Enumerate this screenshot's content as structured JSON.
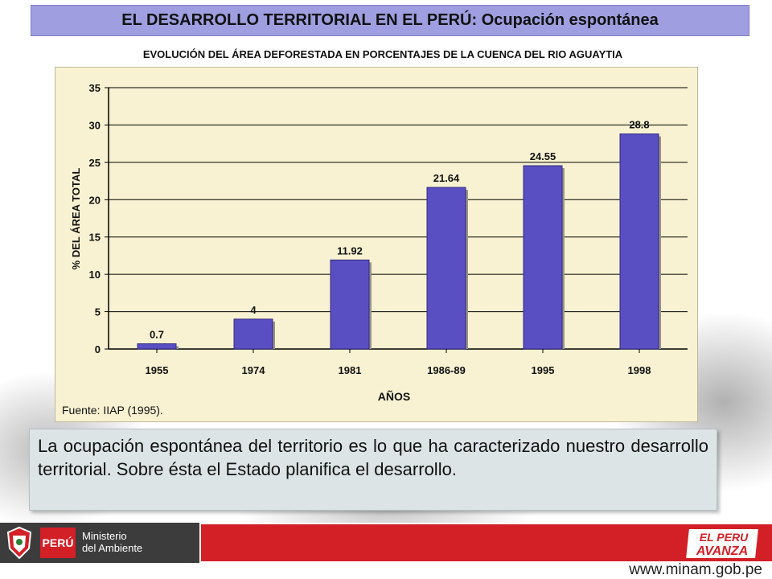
{
  "header": {
    "title": "EL DESARROLLO TERRITORIAL EN EL PERÚ: Ocupación espontánea",
    "subtitle": "EVOLUCIÓN DEL ÁREA DEFORESTADA EN PORCENTAJES DE LA CUENCA DEL RIO AGUAYTIA"
  },
  "chart_data": {
    "type": "bar",
    "categories": [
      "1955",
      "1974",
      "1981",
      "1986-89",
      "1995",
      "1998"
    ],
    "values": [
      0.7,
      4,
      11.92,
      21.64,
      24.55,
      28.8
    ],
    "data_labels": [
      "0.7",
      "4",
      "11.92",
      "21.64",
      "24.55",
      "28.8"
    ],
    "title": "",
    "xlabel": "AÑOS",
    "ylabel": "% DEL ÁREA TOTAL",
    "ylim": [
      0,
      35
    ],
    "yticks": [
      0,
      5,
      10,
      15,
      20,
      25,
      30,
      35
    ],
    "grid": true,
    "bar_color": "#5a4fc2",
    "panel_color": "#f8f2d2"
  },
  "source": "Fuente: IIAP (1995).",
  "body_text": "La ocupación espontánea del territorio es lo que ha caracterizado nuestro desarrollo territorial. Sobre ésta el Estado planifica el desarrollo.",
  "footer": {
    "peru_label": "PERÚ",
    "ministerio_line1": "Ministerio",
    "ministerio_line2": "del Ambiente",
    "avanza_line1": "EL PERU",
    "avanza_line2": "AVANZA",
    "url": "www.minam.gob.pe",
    "accent": "#d31f26"
  }
}
